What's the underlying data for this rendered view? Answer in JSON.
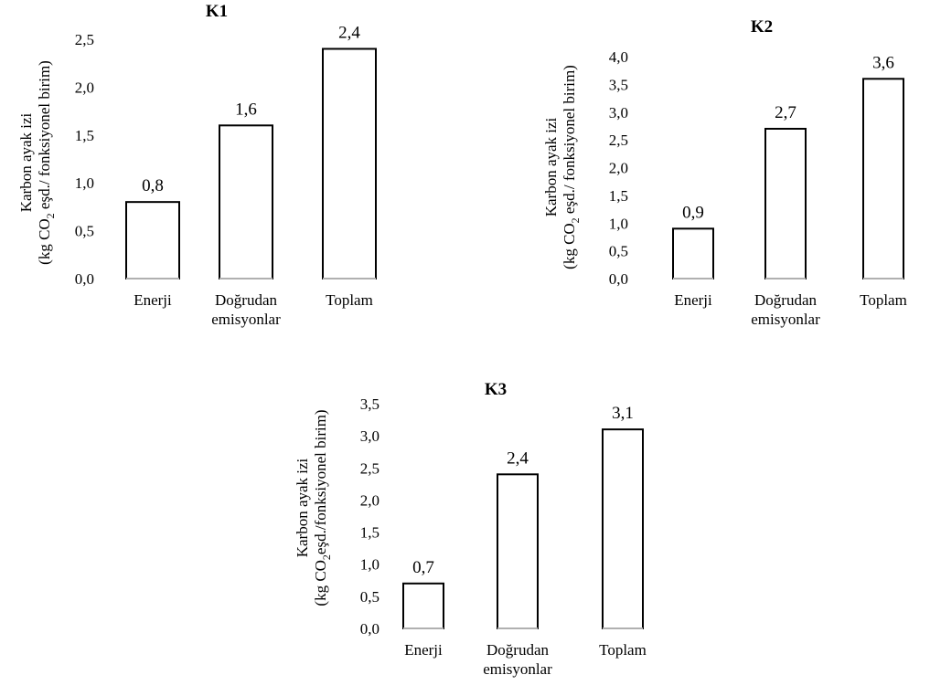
{
  "chart_data": [
    {
      "type": "bar",
      "title": "K1",
      "categories": [
        [
          "Enerji"
        ],
        [
          "Doğrudan",
          "emisyonlar"
        ],
        [
          "Toplam"
        ]
      ],
      "values": [
        0.8,
        1.6,
        2.4
      ],
      "data_labels": [
        "0,8",
        "1,6",
        "2,4"
      ],
      "ylim": [
        0,
        2.5
      ],
      "yticks": [
        0,
        0.5,
        1.0,
        1.5,
        2.0,
        2.5
      ],
      "ytick_labels": [
        "0,0",
        "0,5",
        "1,0",
        "1,5",
        "2,0",
        "2,5"
      ],
      "ylabel": {
        "line1": "Karbon ayak izi",
        "line2_before": "(kg CO",
        "line2_sub": "2",
        "line2_after": " eşd./ fonksiyonel birim)"
      },
      "grid": false,
      "legend": "none"
    },
    {
      "type": "bar",
      "title": "K2",
      "categories": [
        [
          "Enerji"
        ],
        [
          "Doğrudan",
          "emisyonlar"
        ],
        [
          "Toplam"
        ]
      ],
      "values": [
        0.9,
        2.7,
        3.6
      ],
      "data_labels": [
        "0,9",
        "2,7",
        "3,6"
      ],
      "ylim": [
        0,
        4.0
      ],
      "yticks": [
        0,
        0.5,
        1.0,
        1.5,
        2.0,
        2.5,
        3.0,
        3.5,
        4.0
      ],
      "ytick_labels": [
        "0,0",
        "0,5",
        "1,0",
        "1,5",
        "2,0",
        "2,5",
        "3,0",
        "3,5",
        "4,0"
      ],
      "ylabel": {
        "line1": "Karbon ayak izi",
        "line2_before": "(kg CO",
        "line2_sub": "2",
        "line2_after": " eşd./ fonksiyonel birim)"
      },
      "grid": false,
      "legend": "none"
    },
    {
      "type": "bar",
      "title": "K3",
      "categories": [
        [
          "Enerji"
        ],
        [
          "Doğrudan",
          "emisyonlar"
        ],
        [
          "Toplam"
        ]
      ],
      "values": [
        0.7,
        2.4,
        3.1
      ],
      "data_labels": [
        "0,7",
        "2,4",
        "3,1"
      ],
      "ylim": [
        0,
        3.5
      ],
      "yticks": [
        0,
        0.5,
        1.0,
        1.5,
        2.0,
        2.5,
        3.0,
        3.5
      ],
      "ytick_labels": [
        "0,0",
        "0,5",
        "1,0",
        "1,5",
        "2,0",
        "2,5",
        "3,0",
        "3,5"
      ],
      "ylabel": {
        "line1": "Karbon ayak izi",
        "line2_before": "(kg CO",
        "line2_sub": "2",
        "line2_after": "eşd./fonksiyonel birim)"
      },
      "grid": false,
      "legend": "none"
    }
  ]
}
